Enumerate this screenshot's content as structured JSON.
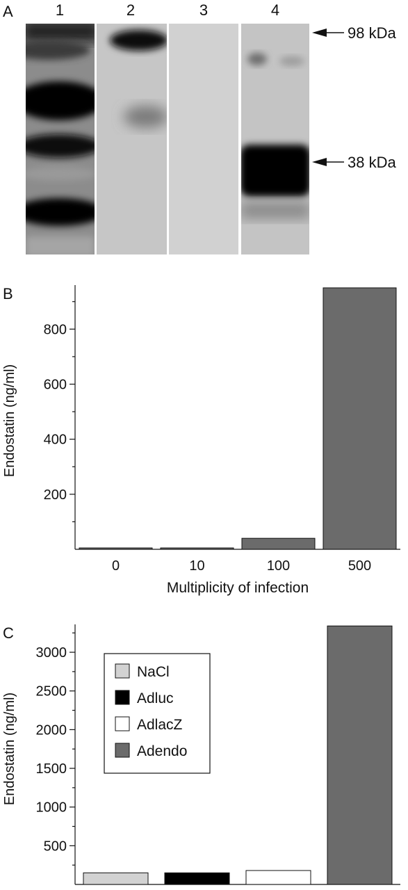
{
  "panels": {
    "a": {
      "label": "A"
    },
    "b": {
      "label": "B"
    },
    "c": {
      "label": "C"
    }
  },
  "blot": {
    "lanes": [
      "1",
      "2",
      "3",
      "4"
    ],
    "markers": [
      "98 kDa",
      "38 kDa"
    ]
  },
  "colors": {
    "NaCl": "#d2d2d2",
    "Adluc": "#000000",
    "AdlacZ": "#ffffff",
    "Adendo": "#6b6b6b",
    "bar_b": "#6b6b6b"
  },
  "chart_data": [
    {
      "panel": "B",
      "type": "bar",
      "categories": [
        "0",
        "10",
        "100",
        "500"
      ],
      "values": [
        5,
        5,
        40,
        950
      ],
      "xlabel": "Multiplicity of infection",
      "ylabel": "Endostatin (ng/ml)",
      "yticks": [
        "200",
        "400",
        "600",
        "800"
      ],
      "ylim": [
        0,
        960
      ],
      "grid": false
    },
    {
      "panel": "C",
      "type": "bar",
      "categories": [
        "NaCl",
        "Adluc",
        "AdlacZ",
        "Adendo"
      ],
      "values": [
        150,
        150,
        180,
        3340
      ],
      "xlabel": "",
      "ylabel": "Endostatin (ng/ml)",
      "yticks": [
        "500",
        "1000",
        "1500",
        "2000",
        "2500",
        "3000"
      ],
      "ylim": [
        0,
        3360
      ],
      "legend": {
        "position": "top-left",
        "entries": [
          "NaCl",
          "Adluc",
          "AdlacZ",
          "Adendo"
        ]
      },
      "grid": false
    }
  ]
}
